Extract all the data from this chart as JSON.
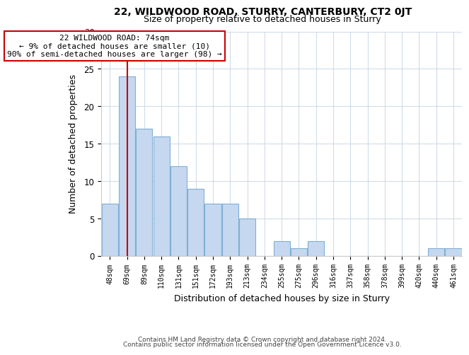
{
  "title": "22, WILDWOOD ROAD, STURRY, CANTERBURY, CT2 0JT",
  "subtitle": "Size of property relative to detached houses in Sturry",
  "xlabel": "Distribution of detached houses by size in Sturry",
  "ylabel": "Number of detached properties",
  "bar_labels": [
    "48sqm",
    "69sqm",
    "89sqm",
    "110sqm",
    "131sqm",
    "151sqm",
    "172sqm",
    "193sqm",
    "213sqm",
    "234sqm",
    "255sqm",
    "275sqm",
    "296sqm",
    "316sqm",
    "337sqm",
    "358sqm",
    "378sqm",
    "399sqm",
    "420sqm",
    "440sqm",
    "461sqm"
  ],
  "bar_values": [
    7,
    24,
    17,
    16,
    12,
    9,
    7,
    7,
    5,
    0,
    2,
    1,
    2,
    0,
    0,
    0,
    0,
    0,
    0,
    1,
    1
  ],
  "bar_color": "#c5d8f0",
  "bar_edge_color": "#7fafd4",
  "ylim": [
    0,
    30
  ],
  "yticks": [
    0,
    5,
    10,
    15,
    20,
    25,
    30
  ],
  "vline_x": 1,
  "vline_color": "#cc0000",
  "annotation_title": "22 WILDWOOD ROAD: 74sqm",
  "annotation_line1": "← 9% of detached houses are smaller (10)",
  "annotation_line2": "90% of semi-detached houses are larger (98) →",
  "annotation_box_color": "#ffffff",
  "annotation_box_edge": "#cc0000",
  "footer_line1": "Contains HM Land Registry data © Crown copyright and database right 2024.",
  "footer_line2": "Contains public sector information licensed under the Open Government Licence v3.0.",
  "background_color": "#ffffff",
  "grid_color": "#d0dce8"
}
